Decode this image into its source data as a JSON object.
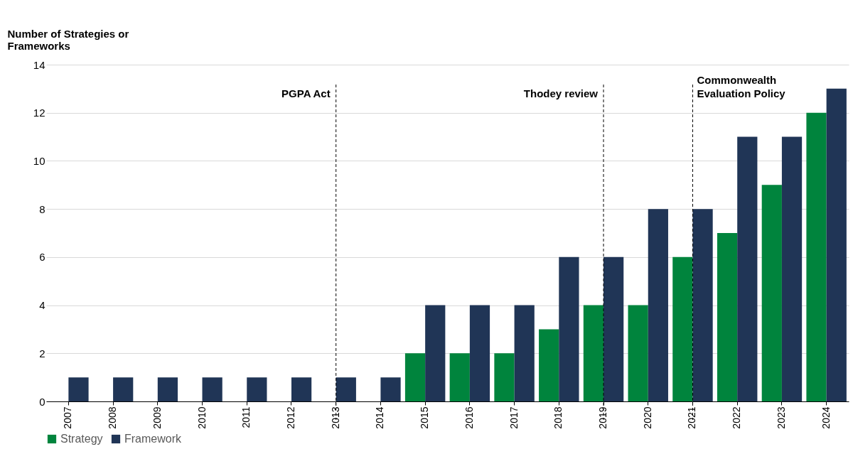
{
  "chart_data": {
    "type": "bar",
    "ylabel": "Number of Strategies or Frameworks",
    "categories": [
      "2007",
      "2008",
      "2009",
      "2010",
      "2011",
      "2012",
      "2013",
      "2014",
      "2015",
      "2016",
      "2017",
      "2018",
      "2019",
      "2020",
      "2021",
      "2022",
      "2023",
      "2024"
    ],
    "series": [
      {
        "name": "Strategy",
        "color": "#00843d",
        "values": [
          null,
          null,
          null,
          null,
          null,
          null,
          null,
          null,
          2,
          2,
          2,
          3,
          4,
          4,
          6,
          7,
          9,
          12
        ]
      },
      {
        "name": "Framework",
        "color": "#203556",
        "values": [
          1,
          1,
          1,
          1,
          1,
          1,
          1,
          1,
          4,
          4,
          4,
          6,
          6,
          8,
          8,
          11,
          11,
          13
        ]
      }
    ],
    "ylim": [
      0,
      14
    ],
    "yticks": [
      0,
      2,
      4,
      6,
      8,
      10,
      12,
      14
    ],
    "grid": "y",
    "legend": "bottom",
    "ref_lines": [
      {
        "axis": "x",
        "value": "2013",
        "label": "PGPA Act",
        "color": "#000000",
        "line_style": "dashed"
      },
      {
        "axis": "x",
        "value": "2019",
        "label": "Thodey review",
        "color": "#000000",
        "line_style": "dashed"
      },
      {
        "axis": "x",
        "value": "2021",
        "label": "Commonwealth Evaluation Policy",
        "color": "#000000",
        "line_style": "dashed"
      }
    ]
  }
}
